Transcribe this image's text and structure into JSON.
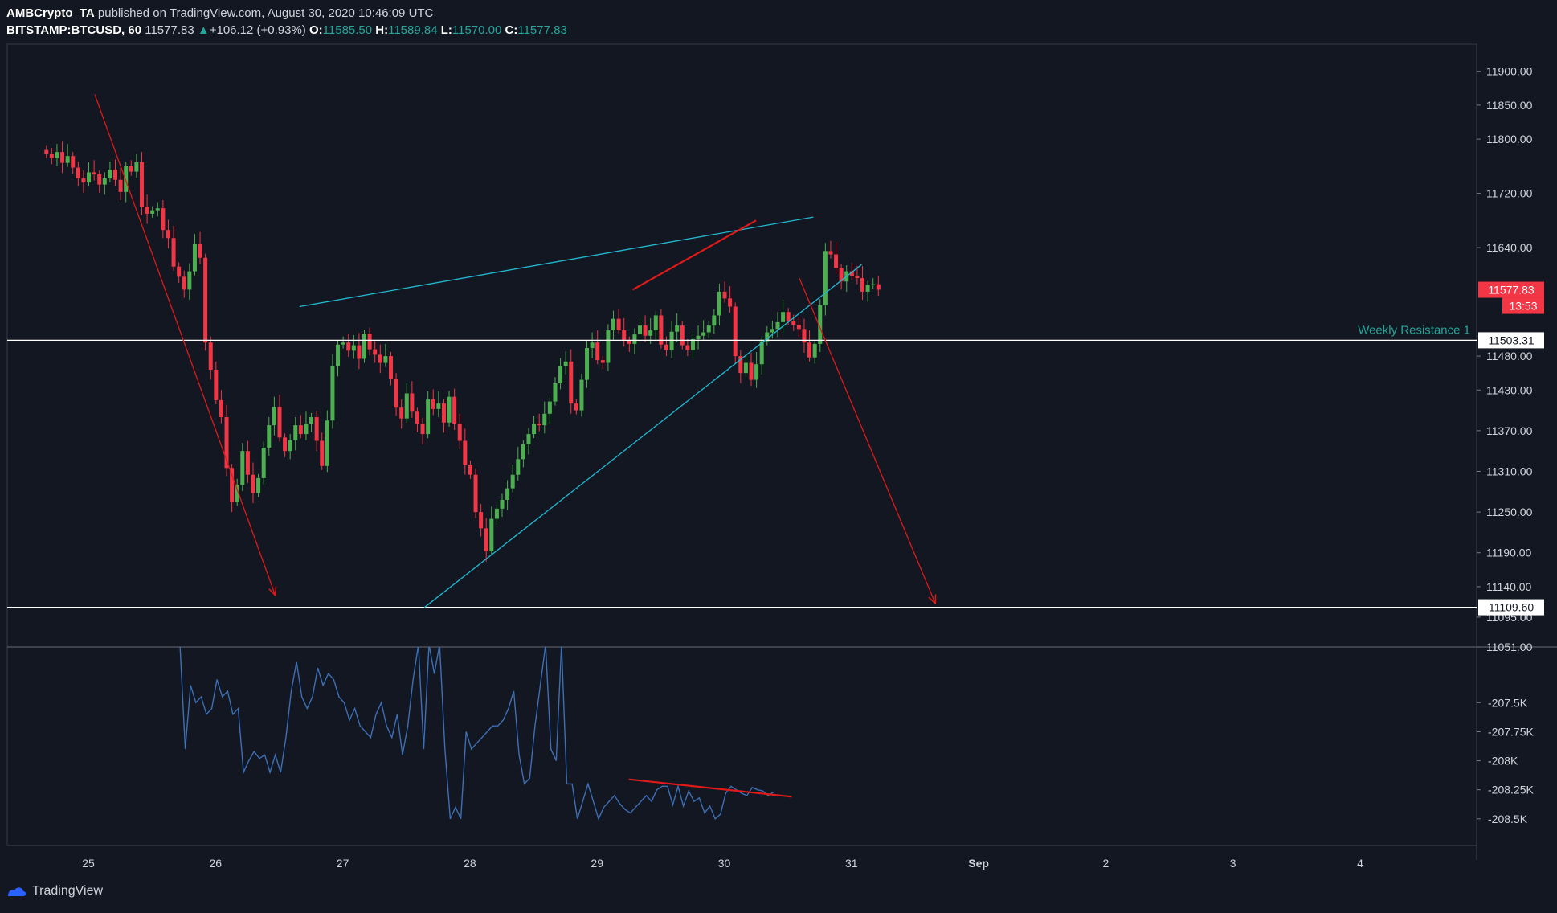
{
  "header": {
    "author": "AMBCrypto_TA",
    "published_text": "published on TradingView.com, August 30, 2020 10:46:09 UTC",
    "symbol": "BITSTAMP:BTCUSD, 60",
    "last": "11577.83",
    "change_arrow": "▲",
    "change": "+106.12 (+0.93%)",
    "o_label": "O:",
    "o_value": "11585.50",
    "h_label": "H:",
    "h_value": "11589.84",
    "l_label": "L:",
    "l_value": "11570.00",
    "c_label": "C:",
    "c_value": "11577.83"
  },
  "footer": {
    "brand": "TradingView"
  },
  "colors": {
    "background": "#131722",
    "up": "#26a69a",
    "candle_up": "#4caf50",
    "candle_down": "#f23645",
    "wedge": "#22b8cf",
    "arrow": "#e01919",
    "indicator": "#3d6fb5"
  },
  "chart_data": [
    {
      "type": "candlestick",
      "symbol": "BITSTAMP:BTCUSD",
      "timeframe": "60",
      "title": "",
      "x_ticks": [
        "25",
        "26",
        "27",
        "28",
        "29",
        "30",
        "31",
        "Sep",
        "2",
        "3",
        "4"
      ],
      "y_ticks": [
        "11900.00",
        "11850.00",
        "11800.00",
        "11720.00",
        "11640.00",
        "11480.00",
        "11430.00",
        "11370.00",
        "11310.00",
        "11250.00",
        "11190.00",
        "11140.00",
        "11095.00",
        "11051.00"
      ],
      "ylim": [
        11051,
        11940
      ],
      "xlim_days": [
        24.63,
        36.23
      ],
      "last_price_label": "11577.83",
      "countdown_label": "13:53",
      "horizontal_levels": [
        {
          "price": 11503.31,
          "label": "11503.31",
          "annotation": "Weekly Resistance 1"
        },
        {
          "price": 11109.6,
          "label": "11109.60",
          "annotation": ""
        }
      ],
      "drawn_lines": [
        {
          "kind": "wedge-upper",
          "color": "wedge",
          "x": [
            26.66,
            30.7
          ],
          "y": [
            11553,
            11685
          ]
        },
        {
          "kind": "wedge-lower",
          "color": "wedge",
          "x": [
            27.64,
            31.08
          ],
          "y": [
            11109,
            11615
          ]
        },
        {
          "kind": "trend-highs",
          "color": "arrow",
          "x": [
            29.28,
            30.25
          ],
          "y": [
            11578,
            11680
          ]
        },
        {
          "kind": "arrow-down",
          "color": "arrow",
          "x": [
            25.05,
            26.47
          ],
          "y": [
            11866,
            11127
          ]
        },
        {
          "kind": "arrow-down",
          "color": "arrow",
          "x": [
            30.59,
            31.66
          ],
          "y": [
            11595,
            11115
          ]
        }
      ],
      "candles_close": [
        11778,
        11772,
        11781,
        11765,
        11775,
        11758,
        11742,
        11736,
        11751,
        11748,
        11733,
        11742,
        11755,
        11740,
        11722,
        11760,
        11752,
        11766,
        11700,
        11690,
        11695,
        11698,
        11666,
        11654,
        11612,
        11597,
        11578,
        11605,
        11645,
        11625,
        11500,
        11460,
        11415,
        11390,
        11315,
        11265,
        11290,
        11340,
        11305,
        11278,
        11300,
        11345,
        11378,
        11405,
        11360,
        11340,
        11356,
        11378,
        11365,
        11380,
        11390,
        11355,
        11318,
        11385,
        11465,
        11497,
        11500,
        11488,
        11496,
        11476,
        11513,
        11490,
        11482,
        11470,
        11480,
        11446,
        11404,
        11388,
        11425,
        11398,
        11380,
        11365,
        11416,
        11402,
        11410,
        11382,
        11420,
        11380,
        11355,
        11320,
        11305,
        11250,
        11226,
        11192,
        11240,
        11255,
        11268,
        11285,
        11305,
        11328,
        11350,
        11365,
        11380,
        11378,
        11395,
        11413,
        11440,
        11465,
        11472,
        11410,
        11400,
        11445,
        11492,
        11500,
        11474,
        11470,
        11518,
        11535,
        11518,
        11503,
        11498,
        11512,
        11525,
        11510,
        11518,
        11540,
        11497,
        11489,
        11516,
        11525,
        11496,
        11489,
        11505,
        11510,
        11515,
        11525,
        11540,
        11575,
        11565,
        11553,
        11480,
        11455,
        11470,
        11445,
        11468,
        11502,
        11515,
        11520,
        11530,
        11545,
        11532,
        11526,
        11520,
        11500,
        11478,
        11498,
        11555,
        11635,
        11630,
        11610,
        11590,
        11605,
        11598,
        11595,
        11575,
        11585,
        11586,
        11578
      ],
      "first_candle_day": 24.67,
      "candle_step_hours": 1
    },
    {
      "type": "line",
      "title": "",
      "color": "indicator",
      "y_ticks": [
        "-207.5K",
        "-207.75K",
        "-208K",
        "-208.25K",
        "-208.5K"
      ],
      "ylim": [
        -208.73,
        -207.02
      ],
      "first_point_day": 25.72,
      "step_hours": 1,
      "values": [
        -207.0,
        -207.9,
        -207.35,
        -207.5,
        -207.45,
        -207.6,
        -207.55,
        -207.3,
        -207.45,
        -207.4,
        -207.6,
        -207.55,
        -208.1,
        -208.0,
        -207.92,
        -207.98,
        -207.95,
        -208.1,
        -207.95,
        -208.1,
        -207.8,
        -207.4,
        -207.15,
        -207.45,
        -207.55,
        -207.45,
        -207.2,
        -207.35,
        -207.25,
        -207.3,
        -207.45,
        -207.5,
        -207.65,
        -207.55,
        -207.7,
        -207.75,
        -207.8,
        -207.6,
        -207.5,
        -207.7,
        -207.8,
        -207.6,
        -207.95,
        -207.7,
        -207.3,
        -207.0,
        -207.9,
        -207.0,
        -207.25,
        -207.0,
        -207.9,
        -208.5,
        -208.4,
        -208.5,
        -207.75,
        -207.9,
        -207.85,
        -207.8,
        -207.75,
        -207.7,
        -207.7,
        -207.65,
        -207.55,
        -207.4,
        -207.95,
        -208.2,
        -208.15,
        -207.7,
        -207.35,
        -207.0,
        -207.9,
        -208.0,
        -207.0,
        -208.2,
        -208.2,
        -208.5,
        -208.35,
        -208.2,
        -208.35,
        -208.5,
        -208.4,
        -208.35,
        -208.3,
        -208.37,
        -208.42,
        -208.45,
        -208.4,
        -208.35,
        -208.3,
        -208.35,
        -208.25,
        -208.22,
        -208.22,
        -208.38,
        -208.22,
        -208.39,
        -208.26,
        -208.35,
        -208.32,
        -208.45,
        -208.39,
        -208.5,
        -208.46,
        -208.28,
        -208.22,
        -208.25,
        -208.28,
        -208.3,
        -208.23,
        -208.25,
        -208.26,
        -208.3,
        -208.27
      ],
      "trend_line": {
        "color": "arrow",
        "x": [
          29.25,
          30.53
        ],
        "y": [
          -208.16,
          -208.31
        ]
      }
    }
  ]
}
